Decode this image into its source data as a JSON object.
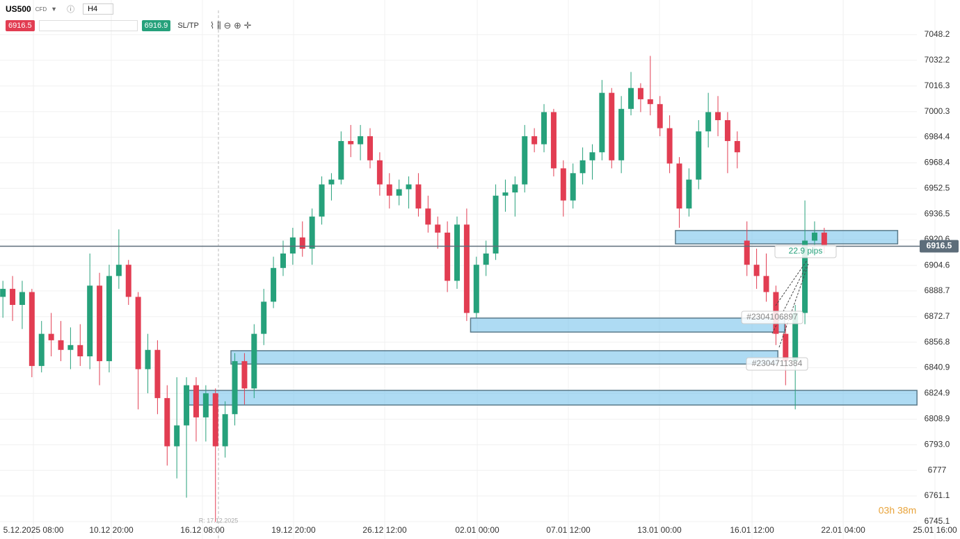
{
  "toolbar": {
    "symbol": "US500",
    "badge": "CFD",
    "timeframe": "H4",
    "sell": "6916.5",
    "buy": "6916.9",
    "sltp": "SL/TP"
  },
  "chart_data": {
    "type": "candlestick",
    "up_color": "#26a17b",
    "down_color": "#e23d52",
    "ohlc": [
      [
        6885,
        6895,
        6872,
        6890
      ],
      [
        6890,
        6898,
        6870,
        6880
      ],
      [
        6880,
        6895,
        6865,
        6888
      ],
      [
        6888,
        6890,
        6835,
        6842
      ],
      [
        6842,
        6870,
        6838,
        6862
      ],
      [
        6862,
        6875,
        6848,
        6858
      ],
      [
        6858,
        6870,
        6845,
        6852
      ],
      [
        6852,
        6866,
        6840,
        6855
      ],
      [
        6855,
        6868,
        6842,
        6848
      ],
      [
        6848,
        6912,
        6840,
        6892
      ],
      [
        6892,
        6900,
        6830,
        6845
      ],
      [
        6845,
        6905,
        6838,
        6898
      ],
      [
        6898,
        6927,
        6890,
        6905
      ],
      [
        6905,
        6908,
        6880,
        6885
      ],
      [
        6885,
        6888,
        6815,
        6840
      ],
      [
        6840,
        6862,
        6825,
        6852
      ],
      [
        6852,
        6858,
        6812,
        6822
      ],
      [
        6822,
        6830,
        6780,
        6792
      ],
      [
        6792,
        6835,
        6772,
        6805
      ],
      [
        6805,
        6835,
        6760,
        6830
      ],
      [
        6830,
        6835,
        6795,
        6810
      ],
      [
        6810,
        6830,
        6795,
        6825
      ],
      [
        6825,
        6828,
        6745,
        6792
      ],
      [
        6792,
        6820,
        6785,
        6812
      ],
      [
        6812,
        6850,
        6805,
        6845
      ],
      [
        6845,
        6850,
        6818,
        6828
      ],
      [
        6828,
        6868,
        6822,
        6862
      ],
      [
        6862,
        6890,
        6855,
        6882
      ],
      [
        6882,
        6910,
        6878,
        6903
      ],
      [
        6903,
        6920,
        6898,
        6912
      ],
      [
        6912,
        6928,
        6905,
        6922
      ],
      [
        6922,
        6932,
        6910,
        6915
      ],
      [
        6915,
        6940,
        6905,
        6935
      ],
      [
        6935,
        6960,
        6930,
        6955
      ],
      [
        6955,
        6962,
        6945,
        6958
      ],
      [
        6958,
        6988,
        6955,
        6982
      ],
      [
        6982,
        6992,
        6972,
        6980
      ],
      [
        6980,
        6992,
        6970,
        6985
      ],
      [
        6985,
        6990,
        6965,
        6970
      ],
      [
        6970,
        6975,
        6948,
        6955
      ],
      [
        6955,
        6962,
        6940,
        6948
      ],
      [
        6948,
        6958,
        6942,
        6952
      ],
      [
        6952,
        6960,
        6940,
        6955
      ],
      [
        6955,
        6962,
        6935,
        6940
      ],
      [
        6940,
        6948,
        6925,
        6930
      ],
      [
        6930,
        6935,
        6915,
        6925
      ],
      [
        6925,
        6932,
        6888,
        6895
      ],
      [
        6895,
        6935,
        6890,
        6930
      ],
      [
        6930,
        6940,
        6870,
        6875
      ],
      [
        6875,
        6910,
        6872,
        6905
      ],
      [
        6905,
        6920,
        6898,
        6912
      ],
      [
        6912,
        6955,
        6908,
        6948
      ],
      [
        6948,
        6958,
        6938,
        6950
      ],
      [
        6950,
        6960,
        6935,
        6955
      ],
      [
        6955,
        6992,
        6950,
        6985
      ],
      [
        6985,
        6990,
        6975,
        6980
      ],
      [
        6980,
        7005,
        6975,
        7000
      ],
      [
        7000,
        7002,
        6960,
        6965
      ],
      [
        6965,
        6970,
        6935,
        6945
      ],
      [
        6945,
        6968,
        6940,
        6962
      ],
      [
        6962,
        6978,
        6955,
        6970
      ],
      [
        6970,
        6980,
        6958,
        6975
      ],
      [
        6975,
        7020,
        6970,
        7012
      ],
      [
        7012,
        7015,
        6965,
        6970
      ],
      [
        6970,
        7010,
        6962,
        7002
      ],
      [
        7002,
        7025,
        6998,
        7015
      ],
      [
        7015,
        7018,
        7000,
        7008
      ],
      [
        7008,
        7035,
        6998,
        7005
      ],
      [
        7005,
        7010,
        6985,
        6990
      ],
      [
        6990,
        6998,
        6962,
        6968
      ],
      [
        6968,
        6972,
        6928,
        6940
      ],
      [
        6940,
        6965,
        6935,
        6958
      ],
      [
        6958,
        6995,
        6952,
        6988
      ],
      [
        6988,
        7012,
        6978,
        7000
      ],
      [
        7000,
        7010,
        6985,
        6995
      ],
      [
        6995,
        7000,
        6962,
        6982
      ],
      [
        6982,
        6988,
        6965,
        6975
      ],
      [
        6920,
        6932,
        6898,
        6905
      ],
      [
        6905,
        6915,
        6890,
        6898
      ],
      [
        6898,
        6912,
        6882,
        6888
      ],
      [
        6888,
        6892,
        6855,
        6862
      ],
      [
        6862,
        6868,
        6830,
        6845
      ],
      [
        6845,
        6880,
        6815,
        6875
      ],
      [
        6875,
        6945,
        6868,
        6920
      ],
      [
        6920,
        6932,
        6912,
        6925
      ],
      [
        6925,
        6928,
        6912,
        6916.5
      ]
    ],
    "xlim": [
      -0.3,
      99.05
    ],
    "xticks": [
      {
        "value": 3.16,
        "label": "5.12.2025 08:00"
      },
      {
        "value": 11.22,
        "label": "10.12 20:00"
      },
      {
        "value": 20.65,
        "label": "16.12 08:00"
      },
      {
        "value": 30.08,
        "label": "19.12 20:00"
      },
      {
        "value": 39.51,
        "label": "26.12 12:00"
      },
      {
        "value": 49.09,
        "label": "02.01 00:00"
      },
      {
        "value": 58.52,
        "label": "07.01 12:00"
      },
      {
        "value": 67.95,
        "label": "13.01 00:00"
      },
      {
        "value": 77.53,
        "label": "16.01 12:00"
      },
      {
        "value": 86.96,
        "label": "22.01 04:00"
      },
      {
        "value": 96.46,
        "label": "25.01 16:00"
      }
    ],
    "ylim": [
      6734.3,
      7063.3
    ],
    "yticks": [
      7048.2,
      7032.2,
      7016.3,
      7000.3,
      6984.4,
      6968.4,
      6952.5,
      6936.5,
      6920.6,
      6904.6,
      6888.7,
      6872.7,
      6856.8,
      6840.9,
      6824.9,
      6808.9,
      {
        "value": 6793,
        "label": "6793.0"
      },
      6777,
      6761.1,
      6745.1
    ],
    "grid": true,
    "last_price": 6916.5,
    "zones": [
      {
        "x": [
          69.6,
          92.6
        ],
        "y": [
          6918.0,
          6926.3
        ]
      },
      {
        "x": [
          48.4,
          80.9
        ],
        "y": [
          6863.1,
          6871.8
        ]
      },
      {
        "x": [
          23.6,
          80.2
        ],
        "y": [
          6843.2,
          6851.5
        ]
      },
      {
        "x": [
          19.1,
          94.6
        ],
        "y": [
          6817.7,
          6826.8
        ]
      }
    ],
    "annotations": [
      "22.9 pips",
      "#2304106897",
      "#2304711384"
    ],
    "marker_label": "R: 17.12.2025",
    "countdown": "03h 38m"
  }
}
